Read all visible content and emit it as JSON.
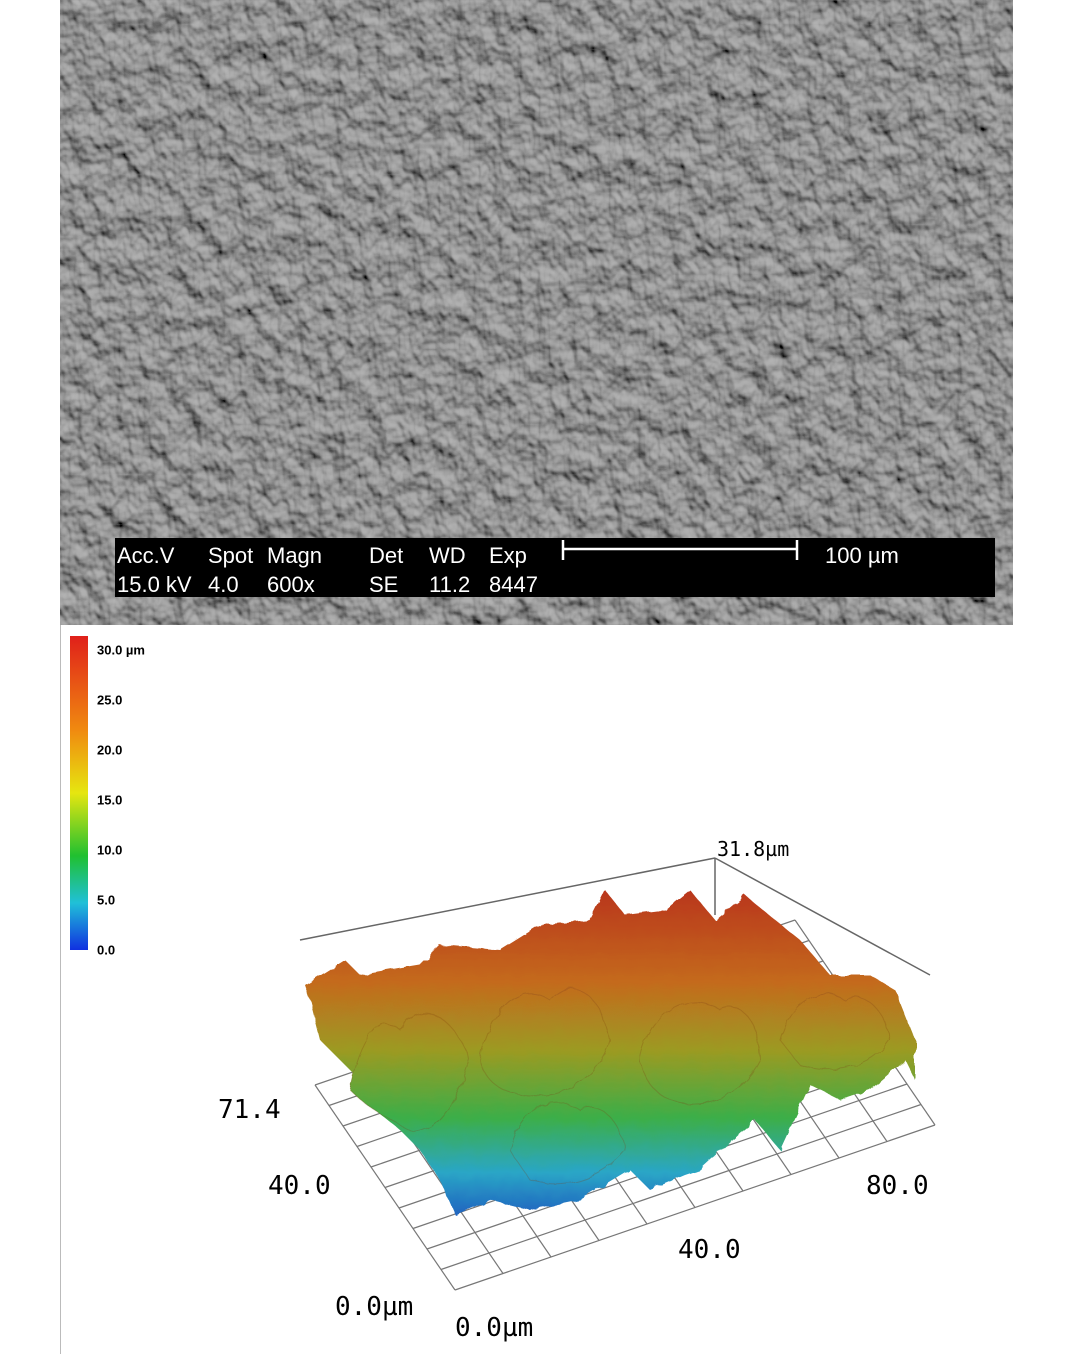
{
  "sem": {
    "info_bar": {
      "labels": [
        "Acc.V",
        "Spot",
        "Magn",
        "Det",
        "WD",
        "Exp"
      ],
      "values": [
        "15.0 kV",
        "4.0",
        "600x",
        "SE",
        "11.2",
        "8447"
      ]
    },
    "scale_bar": "100 µm"
  },
  "colorbar": {
    "ticks": [
      "30.0 µm",
      "25.0",
      "20.0",
      "15.0",
      "10.0",
      "5.0",
      "0.0"
    ]
  },
  "surface_plot": {
    "z_max": "31.8µm",
    "y_axis": [
      "71.4",
      "40.0",
      "0.0µm"
    ],
    "x_axis": [
      "0.0µm",
      "40.0",
      "80.0"
    ]
  }
}
